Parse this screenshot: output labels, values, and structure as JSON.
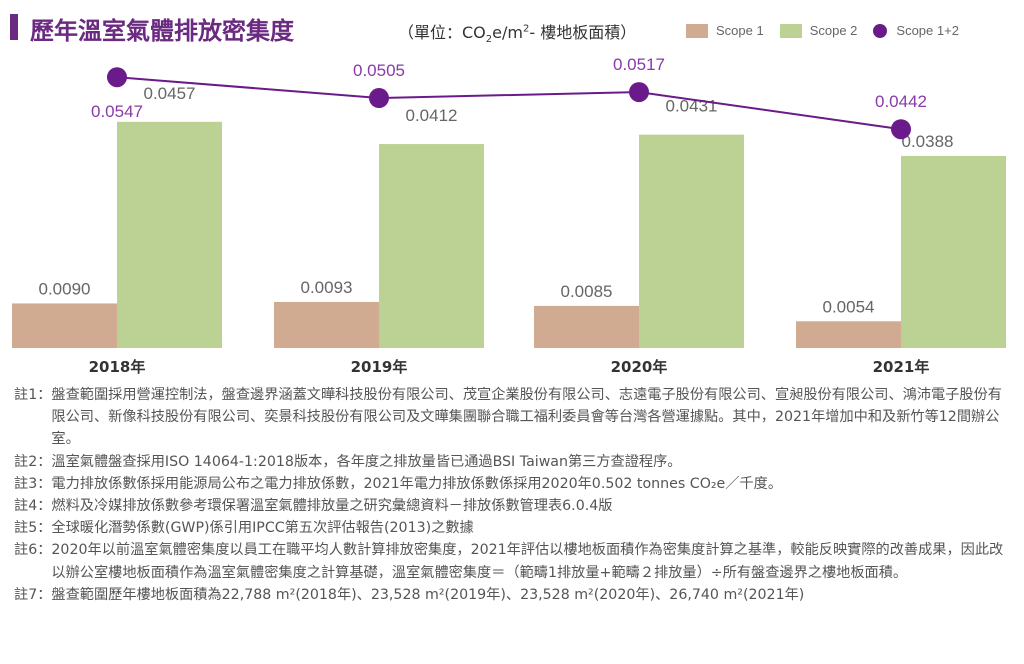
{
  "title": "歷年溫室氣體排放密集度",
  "unit": {
    "pre": "（單位：CO",
    "sub": "2",
    "mid": "e/m",
    "sup": "2",
    "post": "- 樓地板面積）"
  },
  "colors": {
    "scope1": "#d1aa92",
    "scope2": "#bcd294",
    "scope12": "#6a1a8a",
    "title": "#6b2a82"
  },
  "chart_data": {
    "type": "bar",
    "categories": [
      "2018年",
      "2019年",
      "2020年",
      "2021年"
    ],
    "series": [
      {
        "name": "Scope 1",
        "type": "bar",
        "values": [
          0.009,
          0.0093,
          0.0085,
          0.0054
        ],
        "labels": [
          "0.0090",
          "0.0093",
          "0.0085",
          "0.0054"
        ]
      },
      {
        "name": "Scope 2",
        "type": "bar",
        "values": [
          0.0457,
          0.0412,
          0.0431,
          0.0388
        ],
        "labels": [
          "0.0457",
          "0.0412",
          "0.0431",
          "0.0388"
        ]
      },
      {
        "name": "Scope 1+2",
        "type": "line",
        "values": [
          0.0547,
          0.0505,
          0.0517,
          0.0442
        ],
        "labels": [
          "0.0547",
          "0.0505",
          "0.0517",
          "0.0442"
        ]
      }
    ],
    "legend_position": "top-right",
    "grid": false
  },
  "notes": [
    {
      "label": "註1：",
      "text": "盤查範圍採用營運控制法，盤查邊界涵蓋文曄科技股份有限公司、茂宣企業股份有限公司、志遠電子股份有限公司、宣昶股份有限公司、鴻沛電子股份有限公司、新像科技股份有限公司、奕景科技股份有限公司及文曄集團聯合職工福利委員會等台灣各營運據點。其中，2021年增加中和及新竹等12間辦公室。"
    },
    {
      "label": "註2：",
      "text": "溫室氣體盤查採用ISO 14064-1:2018版本，各年度之排放量皆已通過BSI Taiwan第三方查證程序。"
    },
    {
      "label": "註3：",
      "text": "電力排放係數係採用能源局公布之電力排放係數，2021年電力排放係數係採用2020年0.502 tonnes CO₂e／千度。"
    },
    {
      "label": "註4：",
      "text": "燃料及冷媒排放係數參考環保署溫室氣體排放量之研究彙總資料－排放係數管理表6.0.4版"
    },
    {
      "label": "註5：",
      "text": "全球暖化潛勢係數(GWP)係引用IPCC第五次評估報告(2013)之數據"
    },
    {
      "label": "註6：",
      "text": "2020年以前溫室氣體密集度以員工在職平均人數計算排放密集度，2021年評估以樓地板面積作為密集度計算之基準，較能反映實際的改善成果，因此改以辦公室樓地板面積作為溫室氣體密集度之計算基礎，溫室氣體密集度＝（範疇1排放量+範疇２排放量）÷所有盤查邊界之樓地板面積。"
    },
    {
      "label": "註7：",
      "text": "盤查範圍歷年樓地板面積為22,788 m²(2018年)、23,528 m²(2019年)、23,528 m²(2020年)、26,740 m²(2021年)"
    }
  ]
}
